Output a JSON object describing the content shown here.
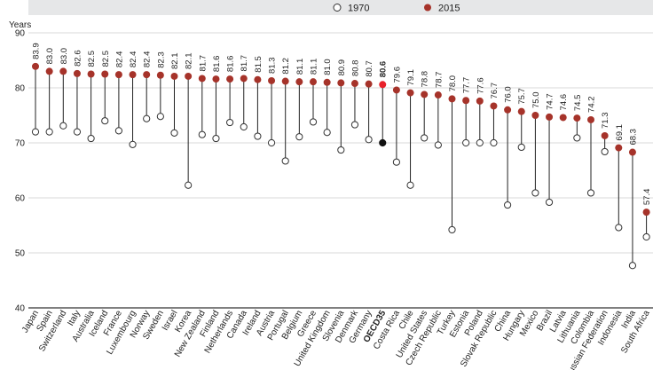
{
  "chart_data": {
    "type": "dot-range",
    "ylabel": "Years",
    "ylim": [
      40,
      90
    ],
    "yticks": [
      40,
      50,
      60,
      70,
      80,
      90
    ],
    "grid": "horizontal",
    "legend_position": "top",
    "highlight": "OECD35",
    "colors": {
      "series_1970_fill": "#ffffff",
      "series_1970_stroke": "#333333",
      "series_2015": "#a6332a",
      "highlight_2015": "#e8212b",
      "highlight_1970": "#111111",
      "legend_band": "#e6e7e8",
      "gridline": "#d9d9d9"
    },
    "categories": [
      "Japan",
      "Spain",
      "Switzerland",
      "Italy",
      "Australia",
      "Iceland",
      "France",
      "Luxembourg",
      "Norway",
      "Sweden",
      "Israel",
      "Korea",
      "New Zealand",
      "Finland",
      "Netherlands",
      "Canada",
      "Ireland",
      "Austria",
      "Portugal",
      "Belgium",
      "Greece",
      "United Kingdom",
      "Slovenia",
      "Denmark",
      "Germany",
      "OECD35",
      "Costa Rica",
      "Chile",
      "United States",
      "Czech Republic",
      "Turkey",
      "Estonia",
      "Poland",
      "Slovak Republic",
      "China",
      "Hungary",
      "Mexico",
      "Brazil",
      "Latvia",
      "Lithuania",
      "Colombia",
      "Russian Federation",
      "Indonesia",
      "India",
      "South Africa"
    ],
    "series": [
      {
        "name": "1970",
        "values": [
          72.0,
          72.0,
          73.1,
          72.0,
          70.8,
          74.0,
          72.2,
          69.7,
          74.4,
          74.8,
          71.8,
          62.3,
          71.5,
          70.8,
          73.7,
          72.9,
          71.2,
          70.0,
          66.7,
          71.1,
          73.8,
          71.9,
          68.7,
          73.3,
          70.6,
          70.0,
          66.5,
          62.3,
          70.9,
          69.6,
          54.2,
          70.0,
          70.0,
          70.0,
          58.7,
          69.2,
          60.9,
          59.2,
          null,
          70.9,
          60.9,
          68.4,
          54.6,
          47.7,
          52.9
        ]
      },
      {
        "name": "2015",
        "values": [
          83.9,
          83.0,
          83.0,
          82.6,
          82.5,
          82.5,
          82.4,
          82.4,
          82.4,
          82.3,
          82.1,
          82.1,
          81.7,
          81.6,
          81.6,
          81.7,
          81.5,
          81.3,
          81.2,
          81.1,
          81.1,
          81.0,
          80.9,
          80.8,
          80.7,
          80.6,
          79.6,
          79.1,
          78.8,
          78.7,
          78.0,
          77.7,
          77.6,
          76.7,
          76.0,
          75.7,
          75.0,
          74.7,
          74.6,
          74.5,
          74.2,
          71.3,
          69.1,
          68.3,
          57.4
        ]
      }
    ],
    "value_labels": [
      "83.9",
      "83.0",
      "83.0",
      "82.6",
      "82.5",
      "82.5",
      "82.4",
      "82.4",
      "82.4",
      "82.3",
      "82.1",
      "82.1",
      "81.7",
      "81.6",
      "81.6",
      "81.7",
      "81.5",
      "81.3",
      "81.2",
      "81.1",
      "81.1",
      "81.0",
      "80.9",
      "80.8",
      "80.7",
      "80.6",
      "79.6",
      "79.1",
      "78.8",
      "78.7",
      "78.0",
      "77.7",
      "77.6",
      "76.7",
      "76.0",
      "75.7",
      "75.0",
      "74.7",
      "74.6",
      "74.5",
      "74.2",
      "71.3",
      "69.1",
      "68.3",
      "57.4"
    ]
  }
}
